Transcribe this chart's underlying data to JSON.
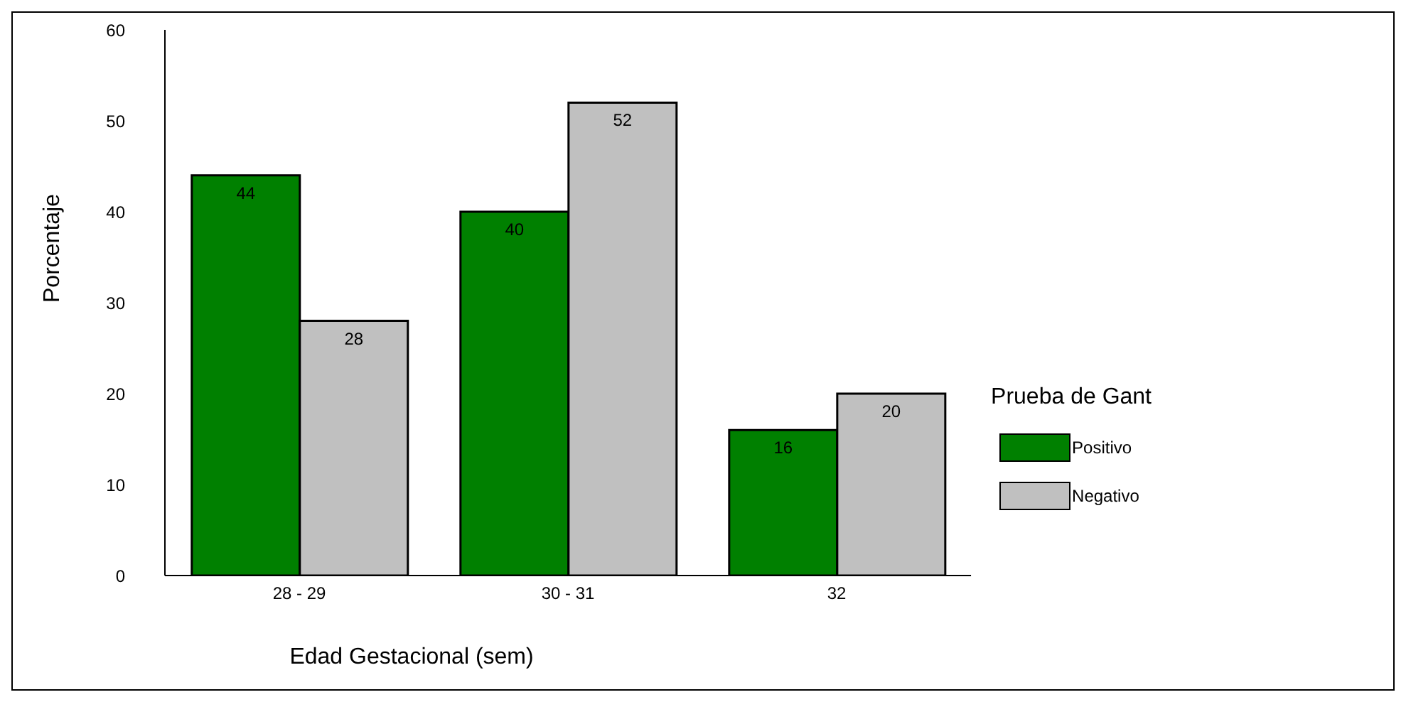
{
  "chart_data": {
    "type": "bar",
    "xlabel": "Edad Gestacional (sem)",
    "ylabel": "Porcentaje",
    "legend_title": "Prueba de Gant",
    "categories": [
      "28 - 29",
      "30 - 31",
      "32"
    ],
    "series": [
      {
        "name": "Positivo",
        "color": "#008000",
        "values": [
          44,
          40,
          16
        ]
      },
      {
        "name": "Negativo",
        "color": "#c0c0c0",
        "values": [
          28,
          52,
          20
        ]
      }
    ],
    "ylim": [
      0,
      60
    ],
    "yticks": [
      0,
      10,
      20,
      30,
      40,
      50,
      60
    ],
    "grid": false,
    "legend": "right",
    "data_labels": true
  }
}
